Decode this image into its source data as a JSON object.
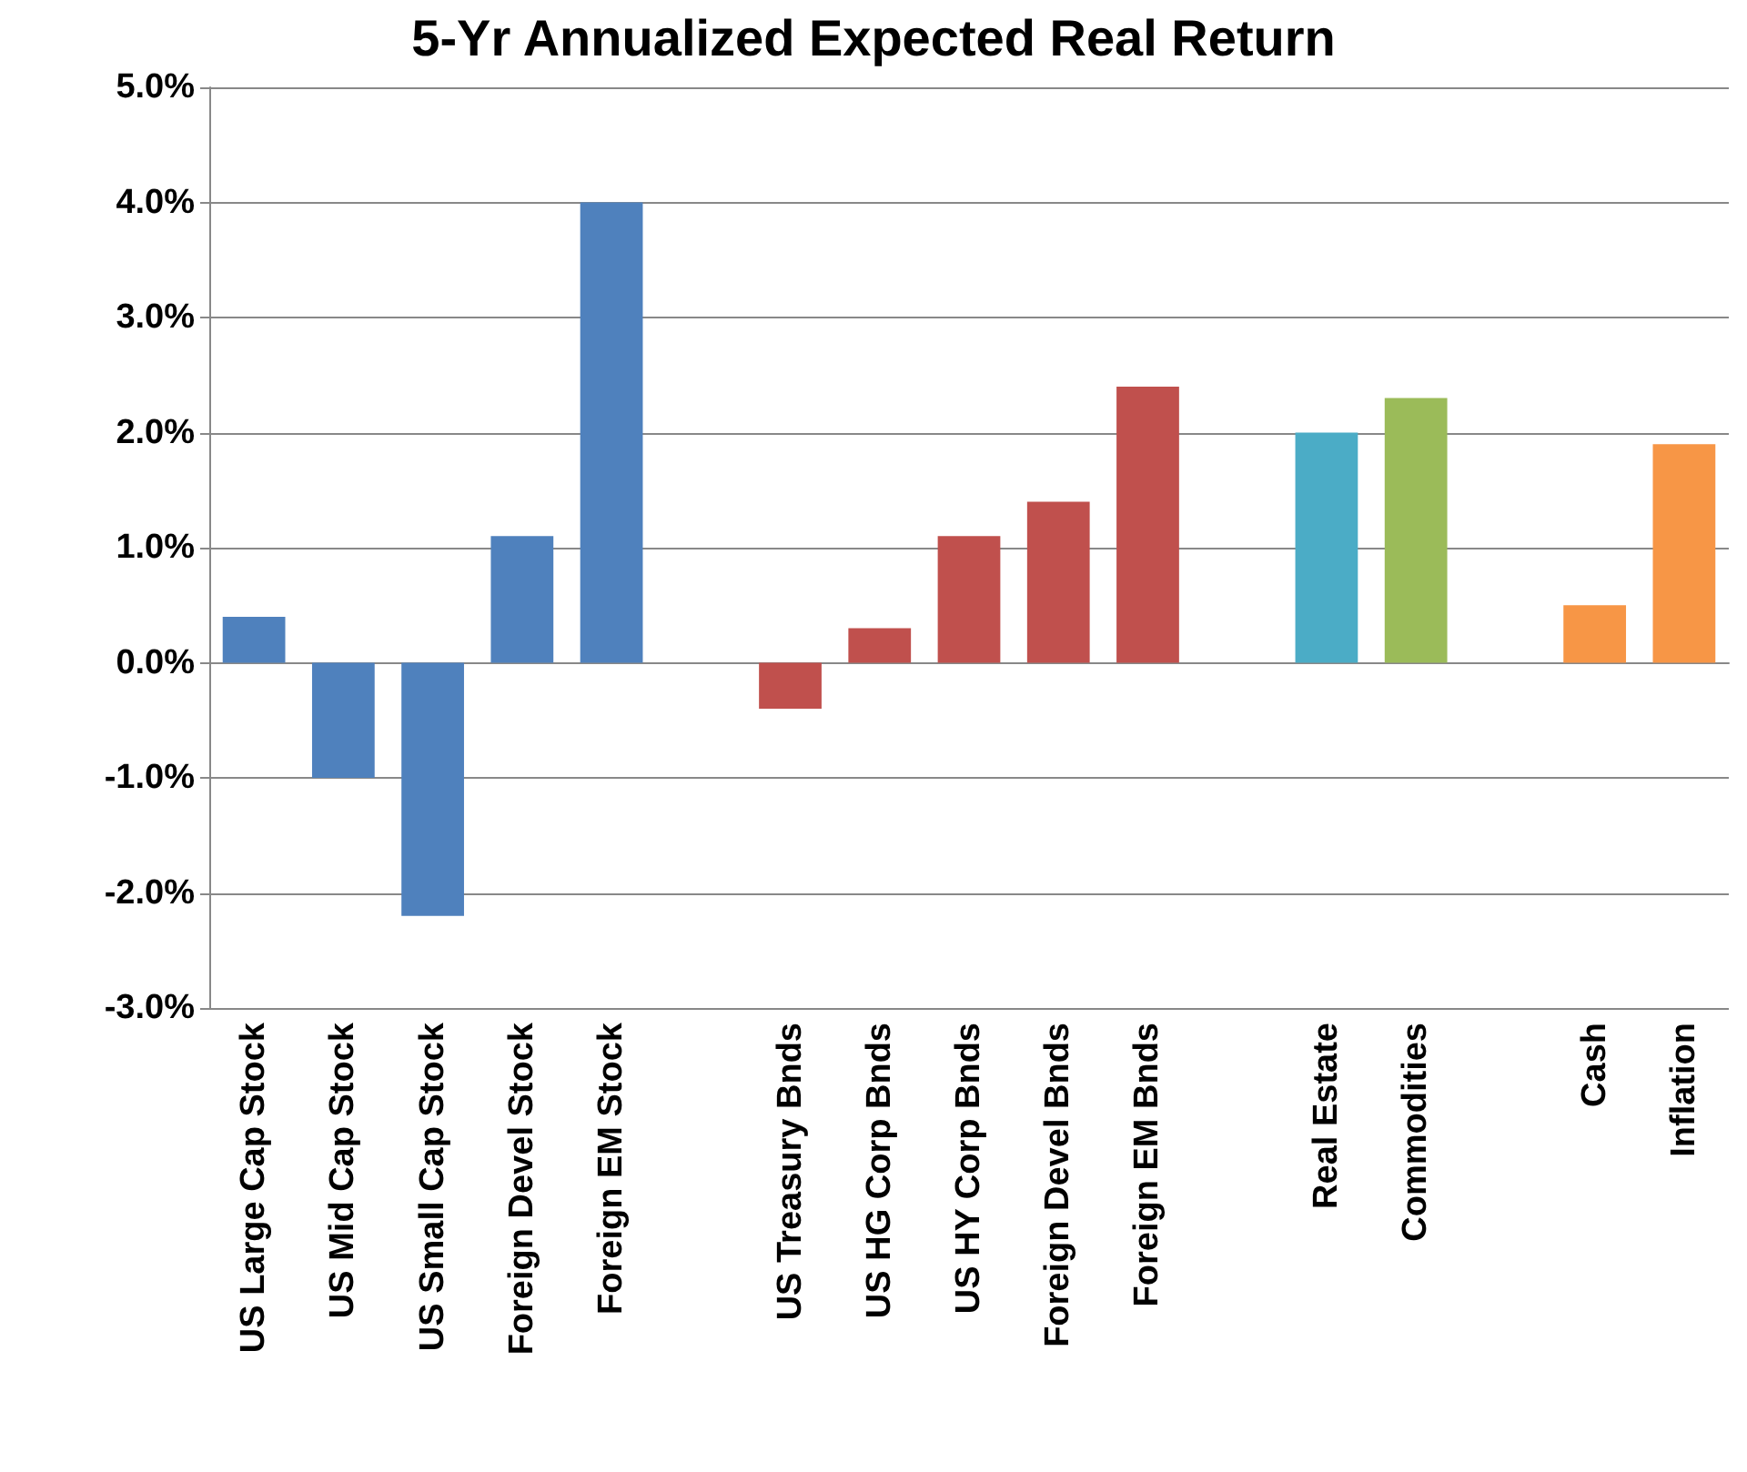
{
  "chart_data": {
    "type": "bar",
    "title": "5-Yr Annualized Expected Real Return",
    "categories": [
      "US Large Cap Stock",
      "US Mid Cap Stock",
      "US Small Cap Stock",
      "Foreign Devel Stock",
      "Foreign EM Stock",
      null,
      "US Treasury Bnds",
      "US HG Corp Bnds",
      "US HY Corp Bnds",
      "Foreign Devel Bnds",
      "Foreign EM Bnds",
      null,
      "Real Estate",
      "Commodities",
      null,
      "Cash",
      "Inflation"
    ],
    "values": [
      0.4,
      -1.0,
      -2.2,
      1.1,
      4.0,
      null,
      -0.4,
      0.3,
      1.1,
      1.4,
      2.4,
      null,
      2.0,
      2.3,
      null,
      0.5,
      1.9
    ],
    "colors": [
      "#4f81bd",
      "#4f81bd",
      "#4f81bd",
      "#4f81bd",
      "#4f81bd",
      null,
      "#c0504d",
      "#c0504d",
      "#c0504d",
      "#c0504d",
      "#c0504d",
      null,
      "#4bacc6",
      "#9bbb59",
      null,
      "#f79646",
      "#f79646"
    ],
    "ylim": [
      -3,
      5
    ],
    "yticks": [
      {
        "value": -3,
        "label": "-3.0%"
      },
      {
        "value": -2,
        "label": "-2.0%"
      },
      {
        "value": -1,
        "label": "-1.0%"
      },
      {
        "value": 0,
        "label": "0.0%"
      },
      {
        "value": 1,
        "label": "1.0%"
      },
      {
        "value": 2,
        "label": "2.0%"
      },
      {
        "value": 3,
        "label": "3.0%"
      },
      {
        "value": 4,
        "label": "4.0%"
      },
      {
        "value": 5,
        "label": "5.0%"
      }
    ],
    "grid": "y"
  }
}
